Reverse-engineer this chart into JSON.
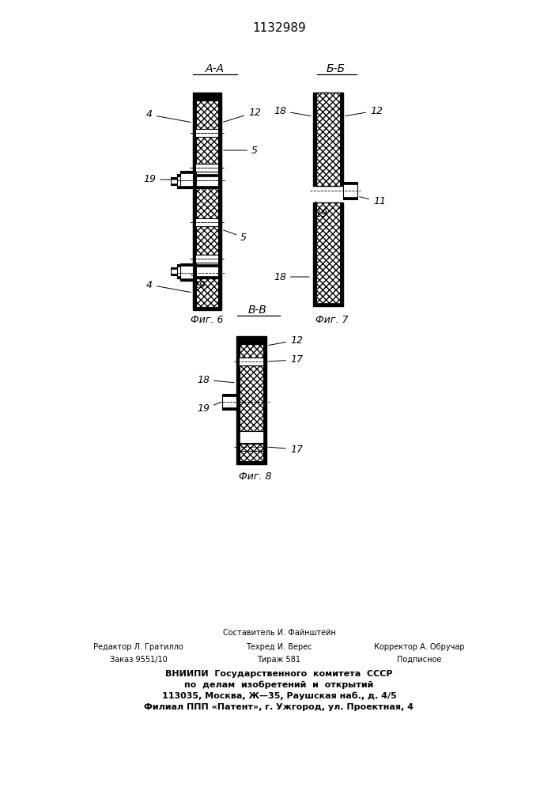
{
  "patent_number": "1132989",
  "bg": "#ffffff",
  "fig6_label": "Фиг. 6",
  "fig7_label": "Фиг. 7",
  "fig8_label": "Фиг. 8",
  "section_AA": "A-A",
  "section_BB": "Б-Б",
  "section_VV": "B-B",
  "footer_line1": "Составитель И. Файнштейн",
  "footer_line2l": "Редактор Л. Гратилло",
  "footer_line2c": "Техред И. Верес",
  "footer_line2r": "Корректор А. Обручар",
  "footer_line3l": "Заказ 9551/10",
  "footer_line3c": "Тираж 581",
  "footer_line3r": "Подписное",
  "footer_bold1": "ВНИИПИ  Государственного  комитета  СССР",
  "footer_bold2": "по  делам  изобретений  и  открытий",
  "footer_bold3": "113035, Москва, Ж—35, Раушская наб., д. 4/5",
  "footer_bold4": "Филиал ППП «Патент», г. Ужгород, ул. Проектная, 4"
}
